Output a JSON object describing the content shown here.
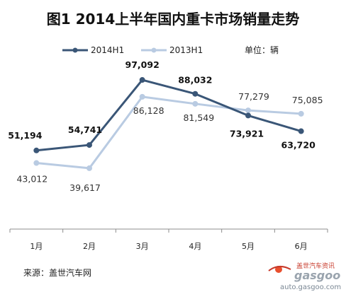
{
  "chart_data": {
    "type": "line",
    "title": "图1  2014上半年国内重卡市场销量走势",
    "unit_label": "单位：辆",
    "categories": [
      "1月",
      "2月",
      "3月",
      "4月",
      "5月",
      "6月"
    ],
    "series": [
      {
        "name": "2014H1",
        "values": [
          51194,
          54741,
          97092,
          88032,
          73921,
          63720
        ],
        "labels": [
          "51,194",
          "54,741",
          "97,092",
          "88,032",
          "73,921",
          "63,720"
        ],
        "color": "#3a5677"
      },
      {
        "name": "2013H1",
        "values": [
          43012,
          39617,
          86128,
          81549,
          77279,
          75085
        ],
        "labels": [
          "43,012",
          "39,617",
          "86,128",
          "81,549",
          "77,279",
          "75,085"
        ],
        "color": "#b9cbe2"
      }
    ],
    "legend_position": "top",
    "grid": false
  },
  "source": "来源：盖世汽车网",
  "watermark": {
    "cn": "盖世汽车资讯",
    "logo": "gasgoo",
    "url": "auto.gasgoo.com"
  }
}
